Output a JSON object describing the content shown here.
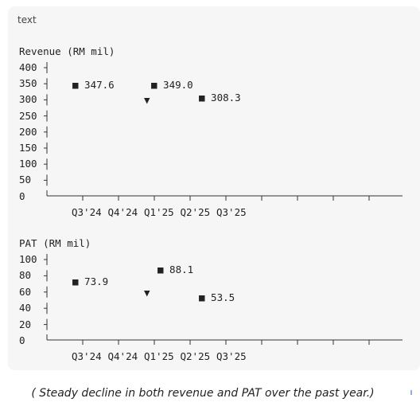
{
  "code_block": {
    "language_label": "text"
  },
  "chart_data": [
    {
      "type": "scatter",
      "title": "Revenue (RM mil)",
      "y_ticks": [
        "400",
        "350",
        "300",
        "250",
        "200",
        "150",
        "100",
        "50",
        "0"
      ],
      "ylim": [
        0,
        400
      ],
      "categories": [
        "Q3'24",
        "Q4'24",
        "Q1'25",
        "Q2'25",
        "Q3'25"
      ],
      "points": [
        {
          "marker": "■",
          "label": "347.6",
          "value": 347.6
        },
        {
          "marker": "■",
          "label": "349.0",
          "value": 349.0
        },
        {
          "marker": "▼",
          "label": "",
          "value": 300
        },
        {
          "marker": "■",
          "label": "308.3",
          "value": 308.3
        }
      ]
    },
    {
      "type": "scatter",
      "title": "PAT (RM mil)",
      "y_ticks": [
        "100",
        "80",
        "60",
        "40",
        "20",
        "0"
      ],
      "ylim": [
        0,
        100
      ],
      "categories": [
        "Q3'24",
        "Q4'24",
        "Q1'25",
        "Q2'25",
        "Q3'25"
      ],
      "points": [
        {
          "marker": "■",
          "label": "73.9",
          "value": 73.9
        },
        {
          "marker": "■",
          "label": "88.1",
          "value": 88.1
        },
        {
          "marker": "▼",
          "label": "",
          "value": 60
        },
        {
          "marker": "■",
          "label": "53.5",
          "value": 53.5
        }
      ]
    }
  ],
  "caption": "( Steady decline in both revenue and PAT over the past year.)"
}
